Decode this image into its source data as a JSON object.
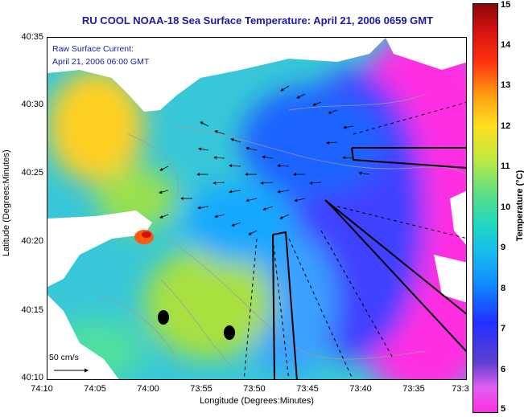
{
  "title": "RU COOL  NOAA-18  Sea Surface Temperature:  April 21, 2006 0659 GMT",
  "overlay": {
    "line1": "Raw Surface Current:",
    "line2": "April 21, 2006 06:00 GMT",
    "scale_label": "50 cm/s"
  },
  "axes": {
    "xlabel": "Longitude (Degrees:Minutes)",
    "ylabel": "Latitude (Degrees:Minutes)",
    "xticks": [
      "74:10",
      "74:05",
      "74:00",
      "73:55",
      "73:50",
      "73:45",
      "73:40",
      "73:35",
      "73:3"
    ],
    "yticks": [
      "40:35",
      "40:30",
      "40:25",
      "40:20",
      "40:15",
      "40:10"
    ]
  },
  "colorbar": {
    "label": "Temperature (°C)",
    "ticks": [
      "15",
      "14",
      "13",
      "12",
      "11",
      "10",
      "9",
      "8",
      "7",
      "6",
      "5"
    ],
    "range": [
      5,
      15
    ]
  },
  "colors": {
    "title": "#1a1aa8",
    "land": "#ffffff",
    "warm_water": "#ffe020",
    "cool_water": "#2030ff",
    "cold_water": "#ff2de2"
  }
}
